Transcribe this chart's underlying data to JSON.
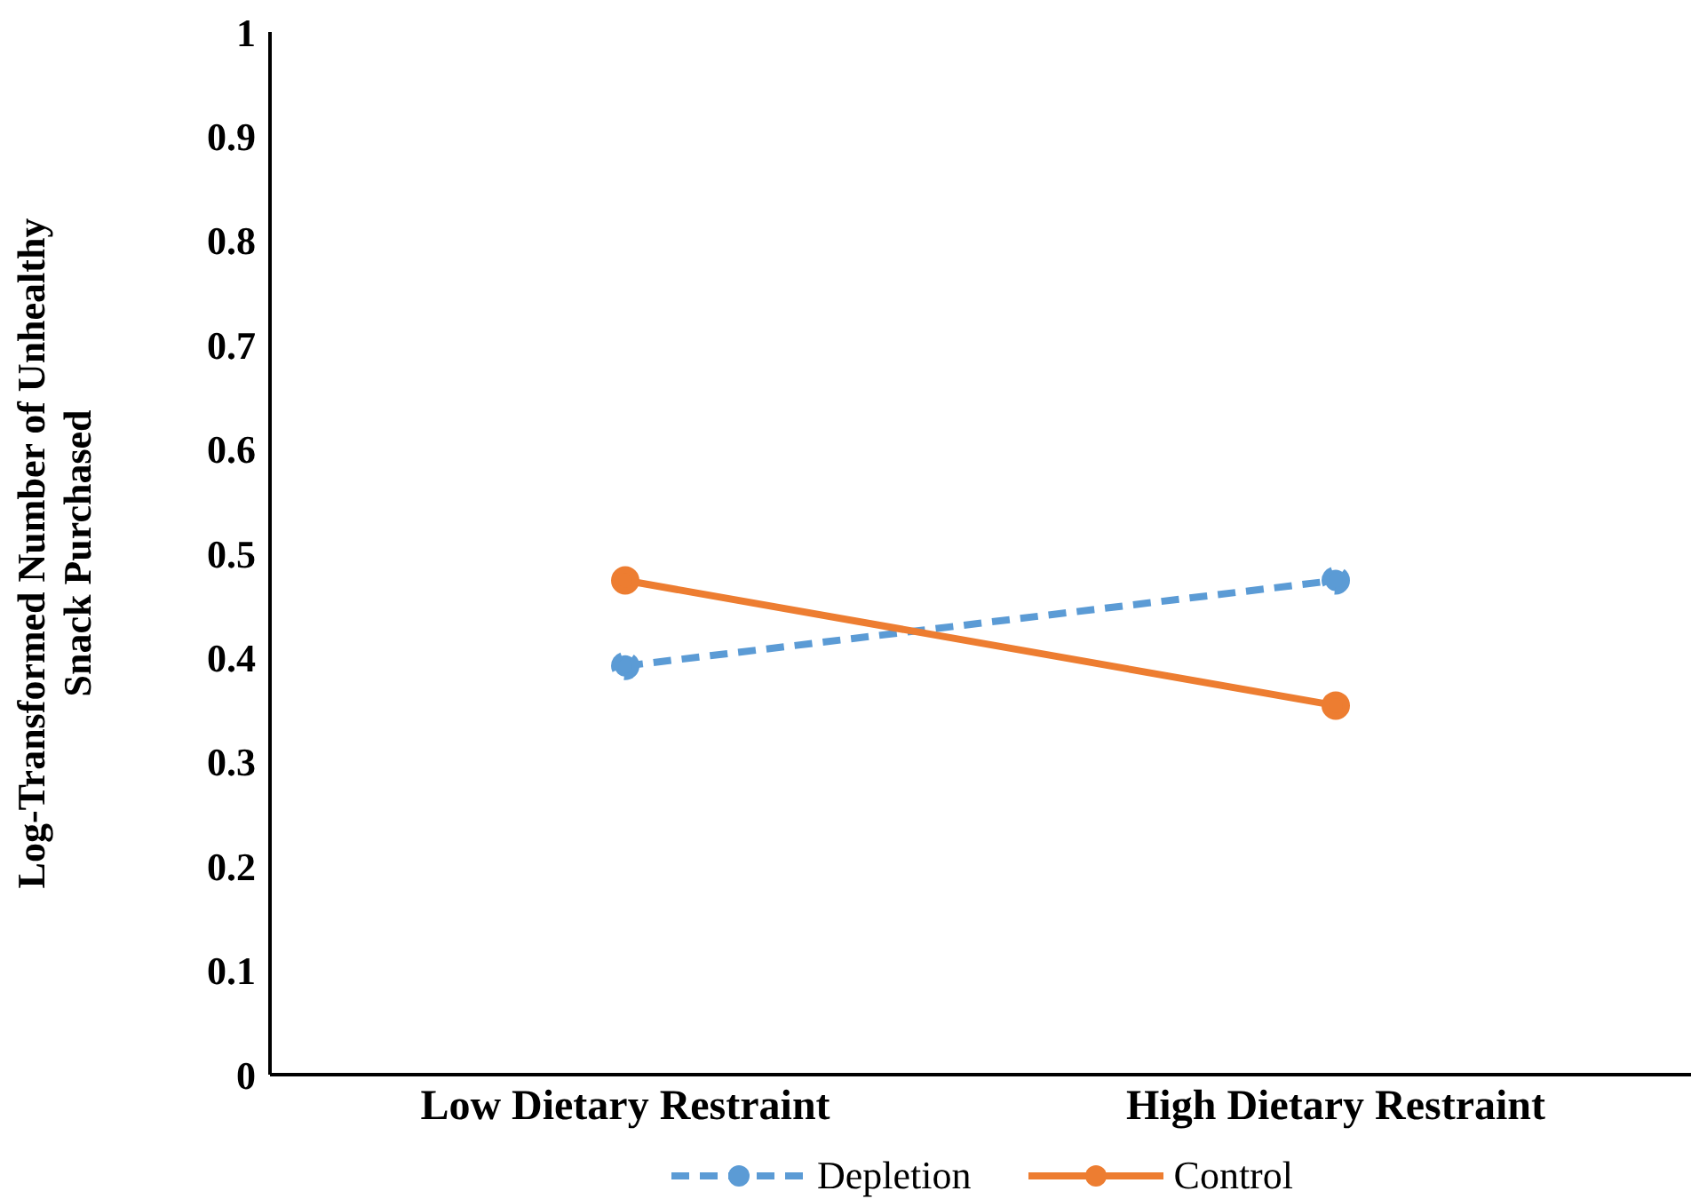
{
  "chart_data": {
    "type": "line",
    "ylabel": "Log-Transformed Number of Unhealthy Snack Purchased",
    "categories": [
      "Low Dietary Restraint",
      "High Dietary Restraint"
    ],
    "series": [
      {
        "name": "Depletion",
        "color": "#5b9bd5",
        "values": [
          0.392,
          0.474
        ],
        "line_style": "dashed"
      },
      {
        "name": "Control",
        "color": "#ed7d31",
        "values": [
          0.474,
          0.354
        ],
        "line_style": "solid"
      }
    ],
    "ylim": [
      0,
      1
    ],
    "yticks": [
      0,
      0.1,
      0.2,
      0.3,
      0.4,
      0.5,
      0.6,
      0.7,
      0.8,
      0.9,
      1
    ],
    "grid": false,
    "legend": "bottom",
    "marker": "circle"
  }
}
